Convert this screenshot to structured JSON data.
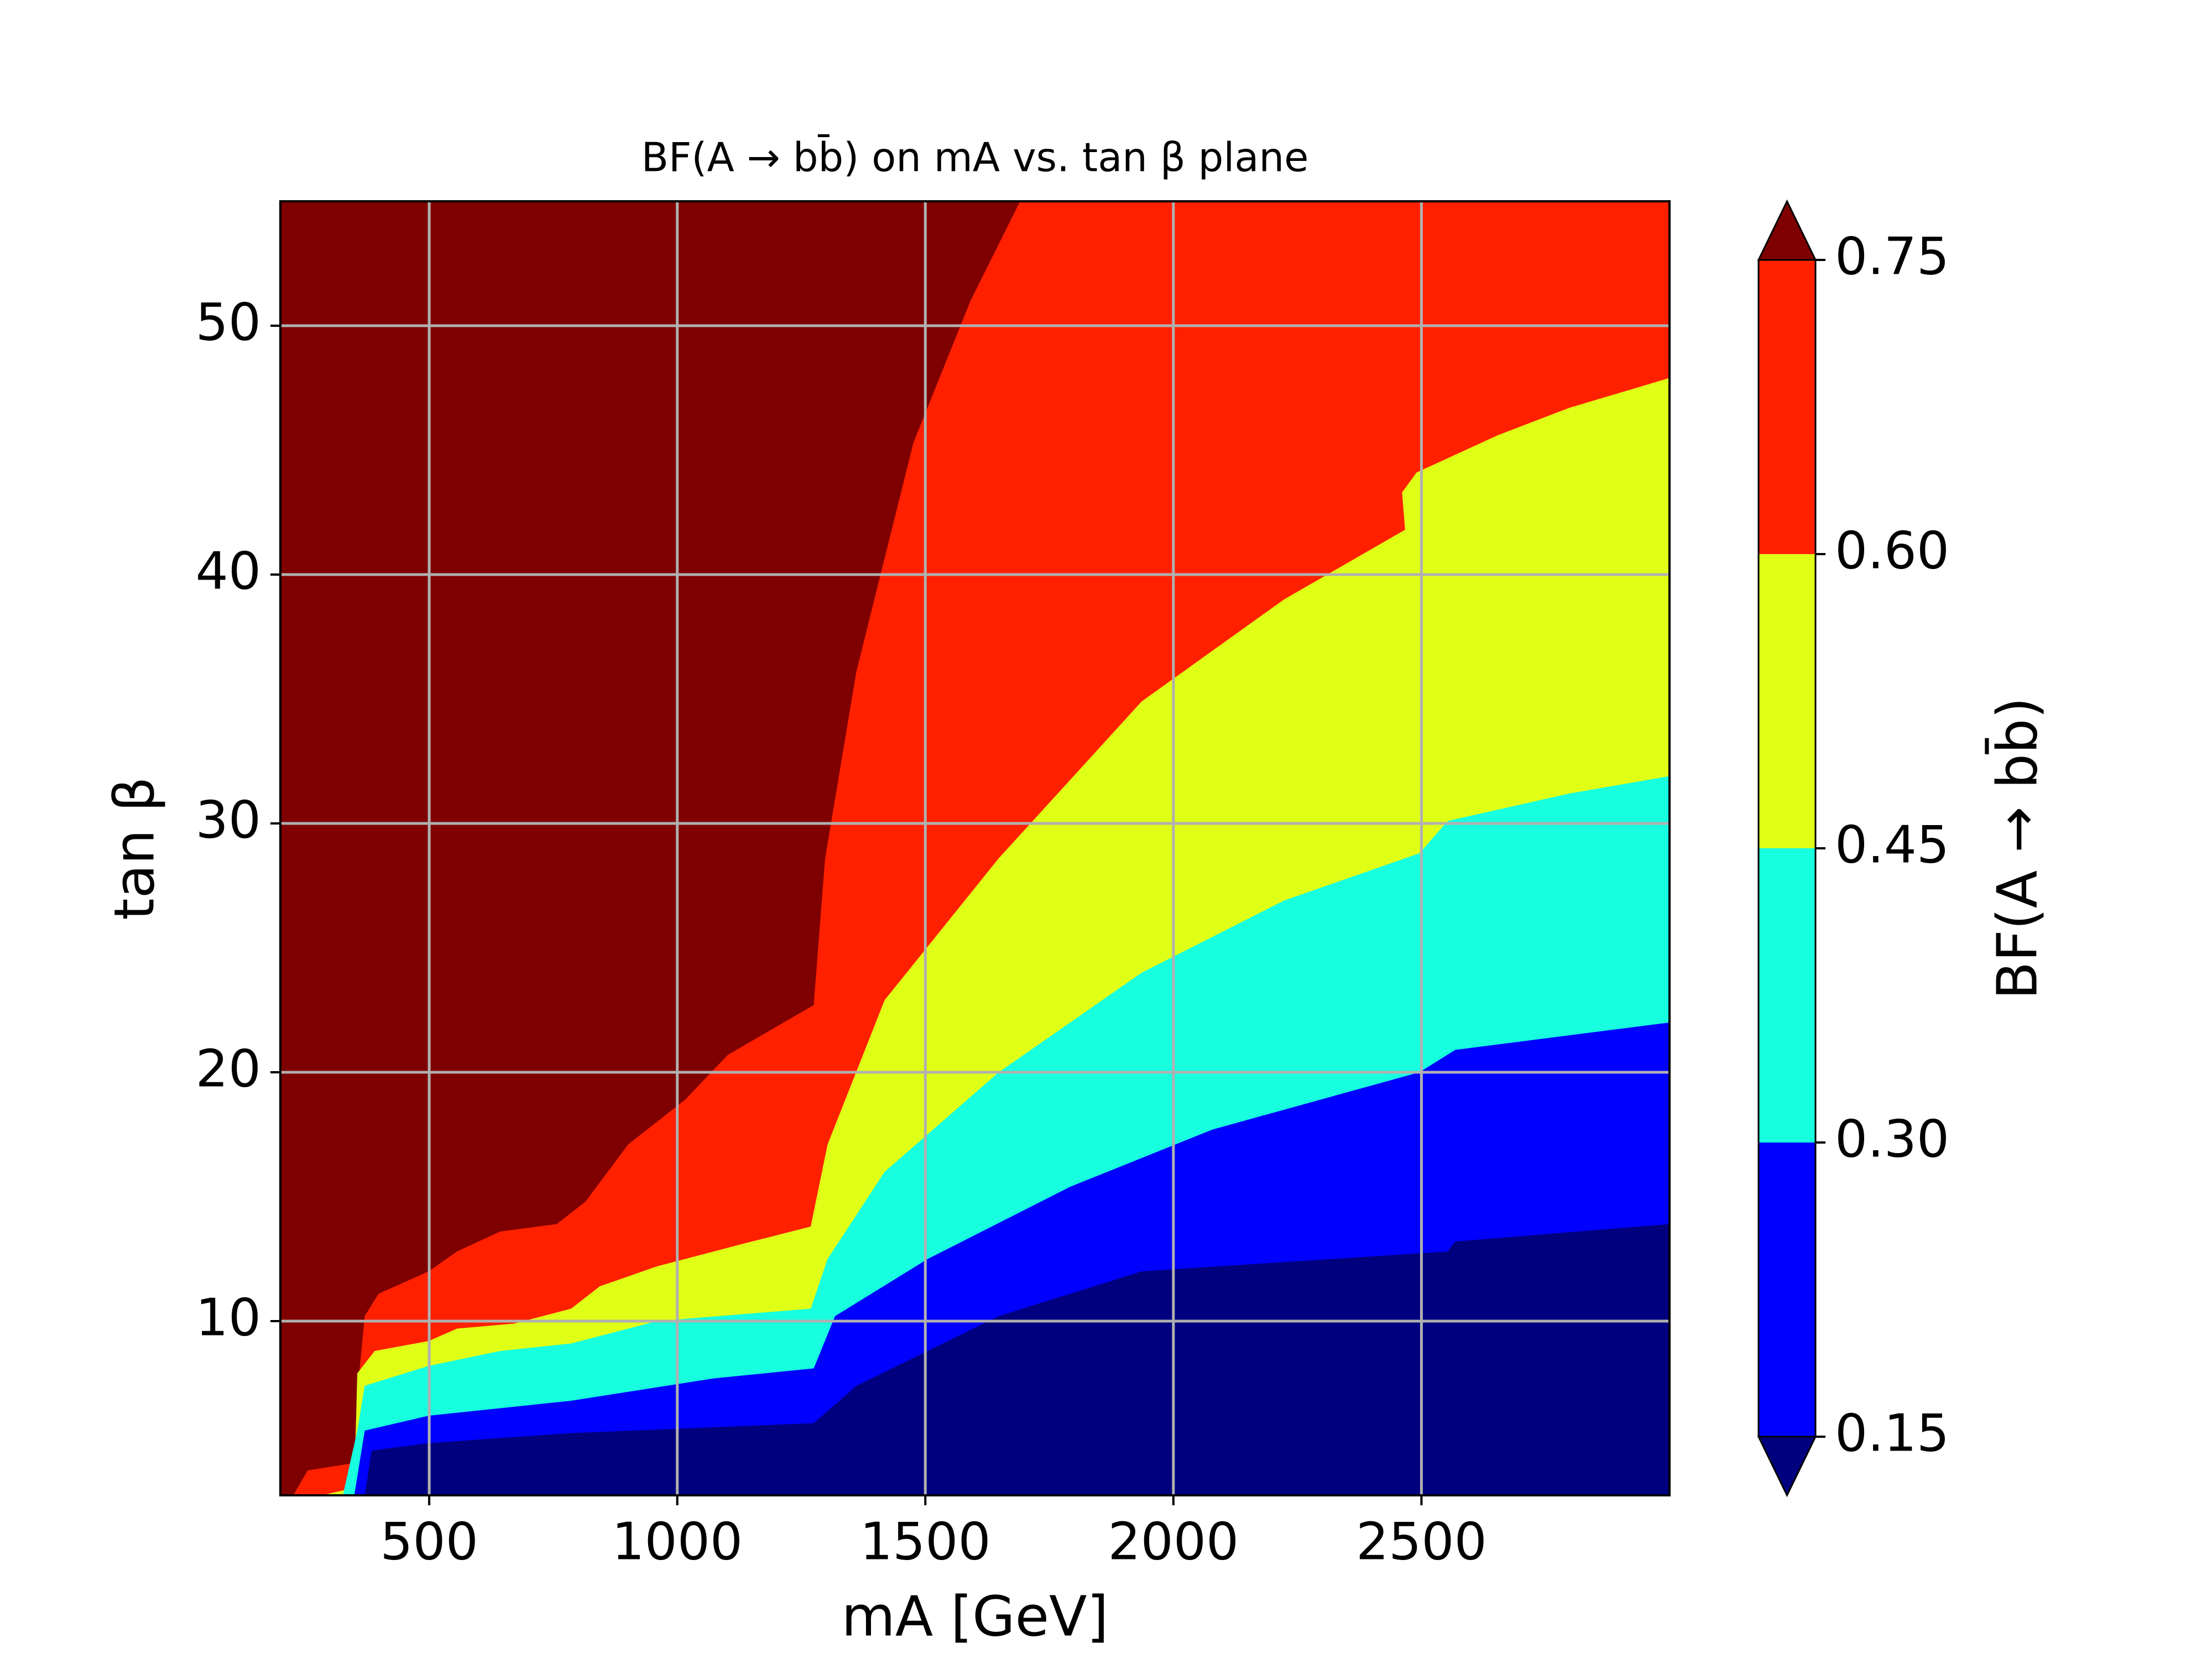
{
  "chart_data": {
    "type": "contourf",
    "title": "BF(A → bb̄) on mA vs. tan β plane",
    "xlabel": "mA [GeV]",
    "ylabel": "tan β",
    "colorbar_label": "BF(A → bb̄)",
    "xlim": [
      200,
      3000
    ],
    "ylim": [
      3,
      55
    ],
    "xticks": [
      500,
      1000,
      1500,
      2000,
      2500
    ],
    "yticks": [
      10,
      20,
      30,
      40,
      50
    ],
    "grid": true,
    "above_color": "#7f0000",
    "below_color": "#00007f",
    "cticks": [
      0.75,
      {
        "value": 0.6,
        "label": "0.60"
      },
      0.45,
      {
        "value": 0.3,
        "label": "0.30"
      },
      0.15
    ],
    "contours": [
      {
        "color": "#ff2000",
        "x": [
          226,
          255,
          349,
          355,
          370,
          398,
          499,
          556,
          643,
          757,
          815,
          901,
          1016,
          1102,
          1275,
          1298,
          1361,
          1476,
          1591,
          1691
        ],
        "y": [
          3.0,
          4.0,
          4.3,
          7.1,
          10.2,
          11.1,
          12.0,
          12.8,
          13.6,
          13.9,
          14.8,
          17.1,
          18.9,
          20.7,
          22.7,
          28.6,
          36.1,
          45.3,
          51.0,
          55.0
        ]
      },
      {
        "color": "#e0ff17",
        "x": [
          283,
          349,
          355,
          390,
          499,
          556,
          671,
          786,
          844,
          959,
          1131,
          1269,
          1303,
          1418,
          1648,
          1936,
          2223,
          2467,
          2461,
          2490,
          2654,
          2798,
          3000
        ],
        "y": [
          3.0,
          3.3,
          7.9,
          8.8,
          9.2,
          9.7,
          9.9,
          10.5,
          11.4,
          12.2,
          13.1,
          13.8,
          17.1,
          22.9,
          28.6,
          34.9,
          39.0,
          41.8,
          43.3,
          44.1,
          45.6,
          46.7,
          47.9
        ]
      },
      {
        "color": "#17ffdf",
        "x": [
          326,
          355,
          370,
          499,
          643,
          786,
          959,
          1269,
          1303,
          1418,
          1648,
          1936,
          2223,
          2496,
          2553,
          2798,
          3000
        ],
        "y": [
          3.0,
          5.6,
          7.4,
          8.2,
          8.8,
          9.1,
          10.0,
          10.5,
          12.5,
          16.0,
          20.0,
          24.0,
          26.9,
          28.8,
          30.1,
          31.2,
          31.9
        ]
      },
      {
        "color": "#0000ff",
        "x": [
          349,
          370,
          499,
          786,
          1074,
          1275,
          1318,
          1505,
          1792,
          2079,
          2496,
          2568,
          3000
        ],
        "y": [
          3.0,
          5.6,
          6.2,
          6.8,
          7.7,
          8.1,
          10.2,
          12.5,
          15.4,
          17.7,
          20.0,
          20.9,
          22.0
        ]
      },
      {
        "color": "#00007f",
        "x": [
          370,
          384,
          499,
          786,
          1275,
          1361,
          1648,
          1936,
          2553,
          2568,
          3000
        ],
        "y": [
          3.0,
          4.8,
          5.1,
          5.5,
          5.9,
          7.4,
          10.2,
          12.0,
          12.8,
          13.2,
          13.9
        ]
      }
    ]
  }
}
